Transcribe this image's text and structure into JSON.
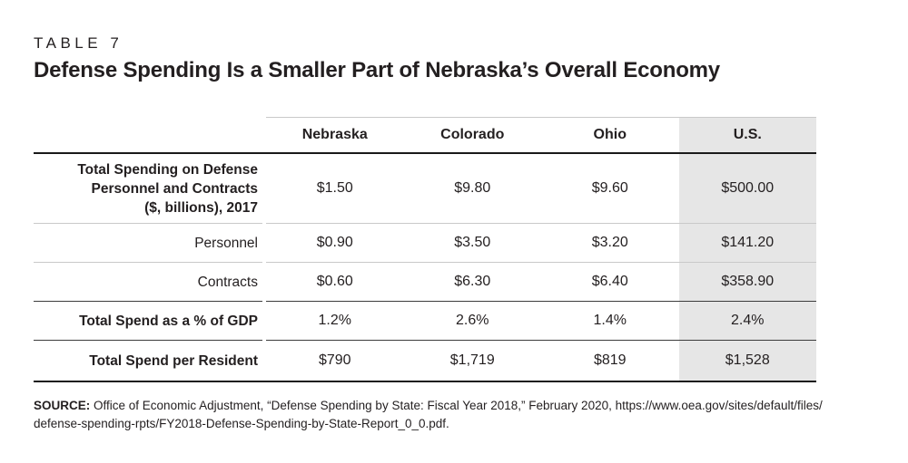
{
  "header": {
    "eyebrow": "TABLE 7",
    "title": "Defense Spending Is a Smaller Part of Nebraska’s Overall Economy"
  },
  "table": {
    "columns": [
      "Nebraska",
      "Colorado",
      "Ohio",
      "U.S."
    ],
    "highlighted_column": "U.S.",
    "rows": [
      {
        "label_lines": [
          "Total Spending on Defense",
          "Personnel and Contracts",
          "($, billions), 2017"
        ],
        "bold": true,
        "values": [
          "$1.50",
          "$9.80",
          "$9.60",
          "$500.00"
        ]
      },
      {
        "label_lines": [
          "Personnel"
        ],
        "bold": false,
        "values": [
          "$0.90",
          "$3.50",
          "$3.20",
          "$141.20"
        ]
      },
      {
        "label_lines": [
          "Contracts"
        ],
        "bold": false,
        "values": [
          "$0.60",
          "$6.30",
          "$6.40",
          "$358.90"
        ]
      },
      {
        "label_lines": [
          "Total Spend as a % of GDP"
        ],
        "bold": true,
        "values": [
          "1.2%",
          "2.6%",
          "1.4%",
          "2.4%"
        ]
      },
      {
        "label_lines": [
          "Total Spend per Resident"
        ],
        "bold": true,
        "values": [
          "$790",
          "$1,719",
          "$819",
          "$1,528"
        ]
      }
    ]
  },
  "source": {
    "label": "SOURCE:",
    "line1_rest": " Office of Economic Adjustment, “Defense Spending by State: Fiscal Year 2018,” February 2020, https://www.oea.gov/sites/default/files/",
    "line2": "defense-spending-rpts/FY2018-Defense-Spending-by-State-Report_0_0.pdf."
  },
  "colors": {
    "text": "#231f20",
    "highlight_bg": "#e6e6e6",
    "rule_light": "#c9c9c9",
    "rule_dark": "#3c3c3c",
    "rule_heavy": "#1a1a1a"
  }
}
